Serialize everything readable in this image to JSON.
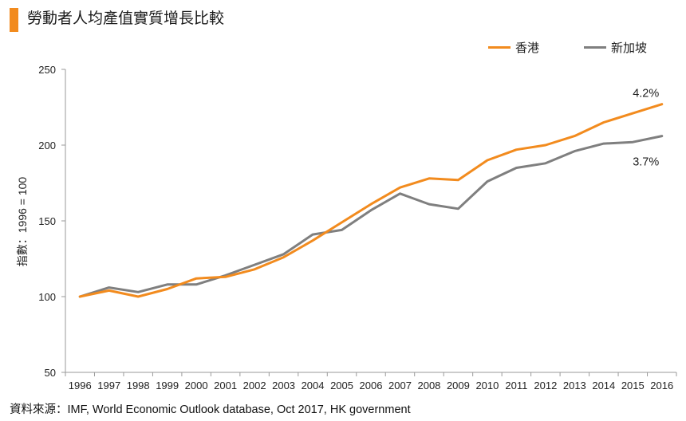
{
  "title": "勞動者人均產值實質增長比較",
  "source": "資料來源：IMF, World Economic Outlook database, Oct 2017, HK government",
  "colors": {
    "accent": "#F28B1E",
    "hong_kong": "#F28B1E",
    "singapore": "#7F7F7F",
    "axis": "#9A9A9A"
  },
  "chart_data": {
    "type": "line",
    "title": "勞動者人均產值實質增長比較",
    "xlabel": "",
    "ylabel": "指數：1996 = 100",
    "ylim": [
      50,
      250
    ],
    "yticks": [
      50,
      100,
      150,
      200,
      250
    ],
    "grid": false,
    "legend_position": "top-right",
    "categories": [
      "1996",
      "1997",
      "1998",
      "1999",
      "2000",
      "2001",
      "2002",
      "2003",
      "2004",
      "2005",
      "2006",
      "2007",
      "2008",
      "2009",
      "2010",
      "2011",
      "2012",
      "2013",
      "2014",
      "2015",
      "2016"
    ],
    "series": [
      {
        "name": "香港",
        "color": "#F28B1E",
        "values": [
          100,
          104,
          100,
          105,
          112,
          113,
          118,
          126,
          137,
          149,
          161,
          172,
          178,
          177,
          190,
          197,
          200,
          206,
          215,
          221,
          227
        ],
        "end_label": "4.2%"
      },
      {
        "name": "新加坡",
        "color": "#7F7F7F",
        "values": [
          100,
          106,
          103,
          108,
          108,
          114,
          121,
          128,
          141,
          144,
          157,
          168,
          161,
          158,
          176,
          185,
          188,
          196,
          201,
          202,
          206
        ],
        "end_label": "3.7%"
      }
    ]
  }
}
